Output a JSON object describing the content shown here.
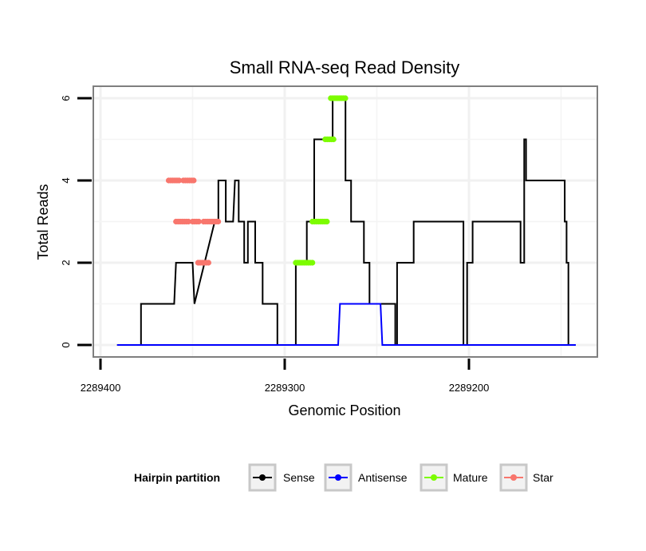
{
  "chart_data": {
    "type": "line",
    "title": "Small RNA-seq Read Density",
    "xlabel": "Genomic Position",
    "ylabel": "Total Reads",
    "xlim": [
      2289410,
      2289140
    ],
    "ylim": [
      -0.3,
      6.3
    ],
    "x_reversed": true,
    "x_ticks": [
      2289400,
      2289300,
      2289200
    ],
    "x_tick_labels": [
      "2289400",
      "2289300",
      "2289200"
    ],
    "y_ticks": [
      0,
      2,
      4,
      6
    ],
    "y_tick_labels": [
      "0",
      "2",
      "4",
      "6"
    ],
    "grid": true,
    "legend": {
      "title": "Hairpin partition",
      "position": "bottom",
      "entries": [
        {
          "name": "Sense",
          "color": "#000000"
        },
        {
          "name": "Antisense",
          "color": "#0000ff"
        },
        {
          "name": "Mature",
          "color": "#7cfc00"
        },
        {
          "name": "Star",
          "color": "#f8766d"
        }
      ]
    },
    "series": [
      {
        "name": "Sense",
        "color": "#000000",
        "x": [
          2289391,
          2289378,
          2289378,
          2289360,
          2289359,
          2289350,
          2289349,
          2289338,
          2289338,
          2289336,
          2289336,
          2289332,
          2289332,
          2289328,
          2289328,
          2289327,
          2289327,
          2289325,
          2289325,
          2289322,
          2289322,
          2289320,
          2289320,
          2289316,
          2289316,
          2289312,
          2289312,
          2289304,
          2289304,
          2289294,
          2289294,
          2289288,
          2289288,
          2289284,
          2289284,
          2289274,
          2289274,
          2289267,
          2289267,
          2289264,
          2289264,
          2289257,
          2289257,
          2289254,
          2289254,
          2289248,
          2289248,
          2289240,
          2289240,
          2289239,
          2289239,
          2289230,
          2289230,
          2289203,
          2289203,
          2289201,
          2289201,
          2289198,
          2289198,
          2289196,
          2289196,
          2289172,
          2289172,
          2289170,
          2289170,
          2289169,
          2289169,
          2289150,
          2289150,
          2289148,
          2289148,
          2289147,
          2289147,
          2289146,
          2289146,
          2289142
        ],
        "y": [
          0,
          0,
          1,
          1,
          2,
          2,
          1,
          3,
          3,
          3,
          4,
          4,
          3,
          3,
          3,
          4,
          4,
          4,
          3,
          3,
          2,
          2,
          3,
          3,
          2,
          2,
          1,
          1,
          0,
          0,
          2,
          2,
          3,
          3,
          5,
          5,
          6,
          6,
          4,
          4,
          3,
          3,
          2,
          2,
          1,
          1,
          1,
          1,
          0,
          0,
          2,
          2,
          3,
          3,
          0,
          0,
          2,
          2,
          3,
          3,
          3,
          3,
          2,
          2,
          5,
          5,
          4,
          4,
          4,
          4,
          3,
          3,
          2,
          2,
          0,
          0
        ],
        "note": "sense coverage trace"
      },
      {
        "name": "Antisense",
        "color": "#0000ff",
        "x": [
          2289391,
          2289271,
          2289270,
          2289248,
          2289247,
          2289142
        ],
        "y": [
          0,
          0,
          1,
          1,
          0,
          0
        ]
      },
      {
        "name": "Mature",
        "color": "#7cfc00",
        "segments": [
          {
            "x": [
              2289294,
              2289284
            ],
            "y": 2
          },
          {
            "x": [
              2289285,
              2289276
            ],
            "y": 3
          },
          {
            "x": [
              2289278,
              2289273
            ],
            "y": 5
          },
          {
            "x": [
              2289275,
              2289267
            ],
            "y": 6
          }
        ]
      },
      {
        "name": "Star",
        "color": "#f8766d",
        "segments": [
          {
            "x": [
              2289363,
              2289357
            ],
            "y": 4
          },
          {
            "x": [
              2289359,
              2289352
            ],
            "y": 3
          },
          {
            "x": [
              2289355,
              2289349
            ],
            "y": 4
          },
          {
            "x": [
              2289350,
              2289346
            ],
            "y": 3
          },
          {
            "x": [
              2289347,
              2289341
            ],
            "y": 2
          },
          {
            "x": [
              2289344,
              2289335
            ],
            "y": 3
          }
        ]
      }
    ]
  }
}
